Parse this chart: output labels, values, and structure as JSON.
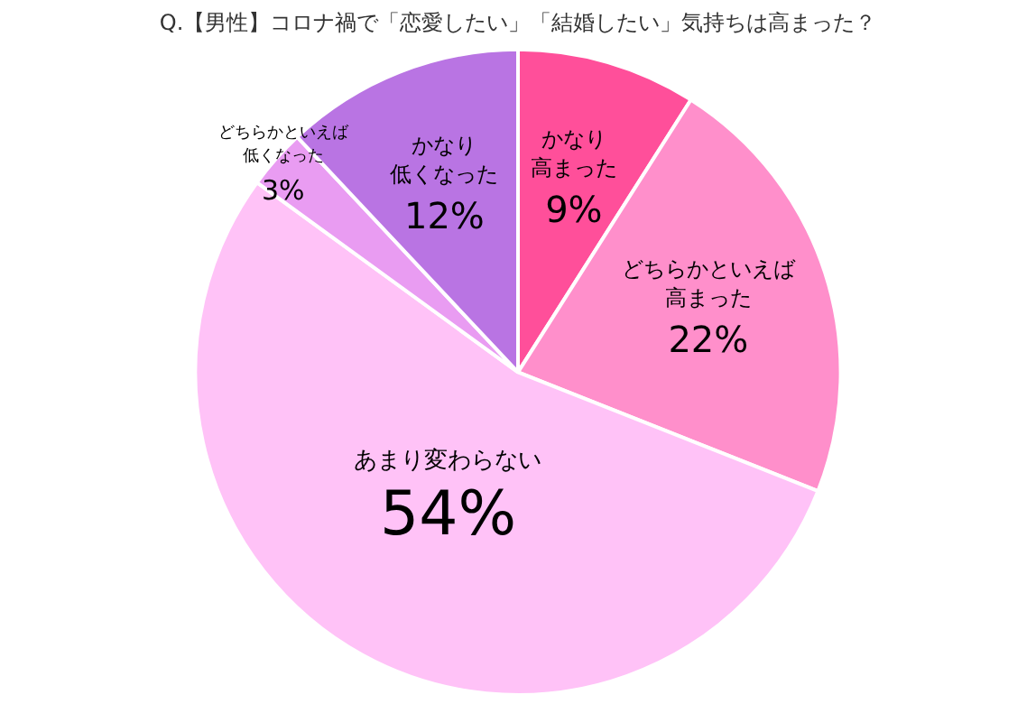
{
  "chart_data": {
    "type": "pie",
    "title": "Q.【男性】コロナ禍で「恋愛したい」「結婚したい」気持ちは高まった？",
    "categories": [
      "かなり高まった",
      "どちらかといえば高まった",
      "あまり変わらない",
      "どちらかといえば低くなった",
      "かなり低くなった"
    ],
    "values": [
      9,
      22,
      54,
      3,
      12
    ],
    "colors": [
      "#ff4f9a",
      "#ff8fcb",
      "#ffc2f7",
      "#e99cf2",
      "#b974e3"
    ],
    "value_labels": [
      "9%",
      "22%",
      "54%",
      "3%",
      "12%"
    ],
    "legend": false
  }
}
